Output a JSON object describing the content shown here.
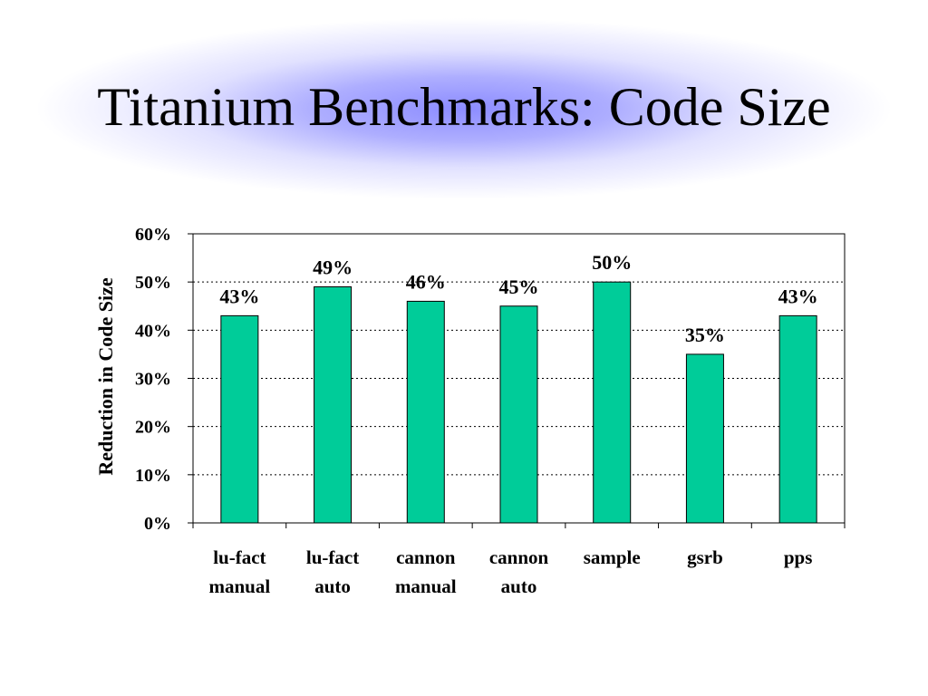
{
  "slide": {
    "title": "Titanium Benchmarks: Code Size"
  },
  "colors": {
    "bar": "#00cc99",
    "title_glow": "#8c8cff"
  },
  "chart_data": {
    "type": "bar",
    "categories": [
      [
        "lu-fact",
        "manual"
      ],
      [
        "lu-fact",
        "auto"
      ],
      [
        "cannon",
        "manual"
      ],
      [
        "cannon",
        "auto"
      ],
      [
        "sample"
      ],
      [
        "gsrb"
      ],
      [
        "pps"
      ]
    ],
    "values": [
      43,
      49,
      46,
      45,
      50,
      35,
      43
    ],
    "data_labels": [
      "43%",
      "49%",
      "46%",
      "45%",
      "50%",
      "35%",
      "43%"
    ],
    "ylabel": "Reduction in Code Size",
    "xlabel": "",
    "ylim": [
      0,
      60
    ],
    "yticks": [
      0,
      10,
      20,
      30,
      40,
      50,
      60
    ],
    "ytick_labels": [
      "0%",
      "10%",
      "20%",
      "30%",
      "40%",
      "50%",
      "60%"
    ],
    "grid": "horizontal dotted",
    "legend": "none"
  }
}
